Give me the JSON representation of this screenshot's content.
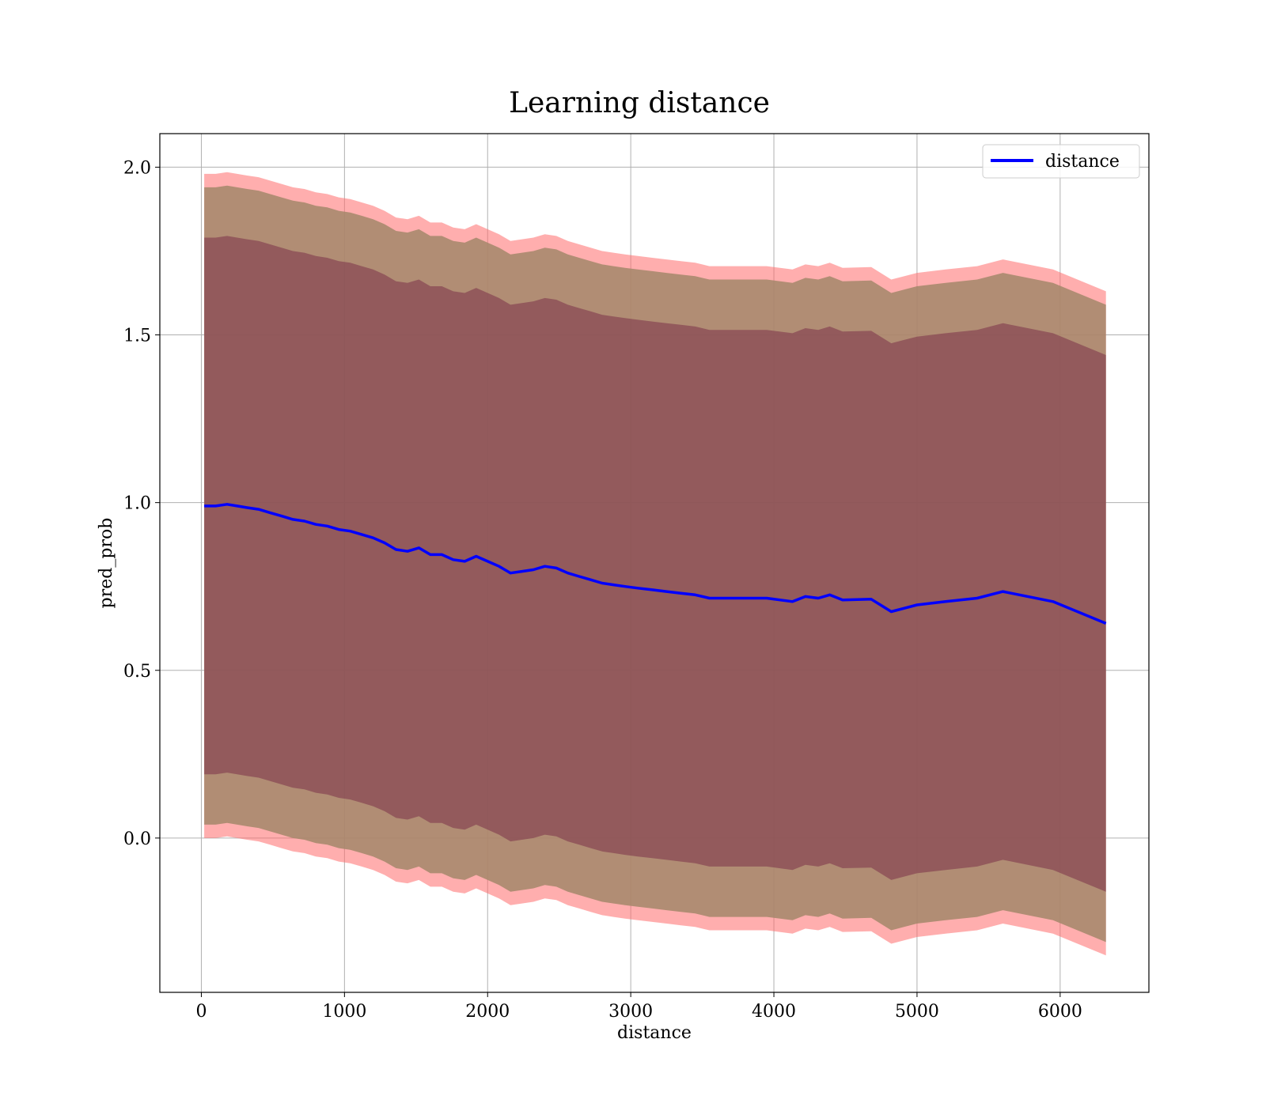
{
  "chart_data": {
    "type": "line",
    "title": "Learning distance",
    "xlabel": "distance",
    "ylabel": "pred_prob",
    "xlim": [
      -290,
      6620
    ],
    "ylim": [
      -0.46,
      2.1
    ],
    "xticks": [
      0,
      1000,
      2000,
      3000,
      4000,
      5000,
      6000
    ],
    "xtick_labels": [
      "0",
      "1000",
      "2000",
      "3000",
      "4000",
      "5000",
      "6000"
    ],
    "yticks": [
      0.0,
      0.5,
      1.0,
      1.5,
      2.0
    ],
    "ytick_labels": [
      "0.0",
      "0.5",
      "1.0",
      "1.5",
      "2.0"
    ],
    "grid": true,
    "legend": {
      "position": "top-right",
      "entries": [
        "distance"
      ]
    },
    "colors": {
      "line": "#0000ff",
      "band_outer": "#ff6b6b",
      "band_middle": "#a3876a",
      "band_inner": "#7a3248",
      "grid": "#b0b0b0"
    },
    "series": [
      {
        "name": "distance",
        "x": [
          20,
          100,
          180,
          250,
          320,
          400,
          480,
          560,
          640,
          720,
          800,
          880,
          960,
          1040,
          1120,
          1200,
          1280,
          1360,
          1440,
          1520,
          1600,
          1680,
          1760,
          1840,
          1920,
          2000,
          2080,
          2160,
          2240,
          2320,
          2400,
          2480,
          2560,
          2640,
          2720,
          2800,
          2880,
          2960,
          3050,
          3150,
          3250,
          3350,
          3450,
          3550,
          3650,
          3750,
          3850,
          3950,
          4130,
          4220,
          4310,
          4390,
          4480,
          4680,
          4820,
          5000,
          5200,
          5420,
          5600,
          5950,
          6320
        ],
        "values": [
          0.99,
          0.99,
          0.995,
          0.99,
          0.985,
          0.98,
          0.97,
          0.96,
          0.95,
          0.945,
          0.935,
          0.93,
          0.92,
          0.915,
          0.905,
          0.895,
          0.88,
          0.86,
          0.855,
          0.865,
          0.845,
          0.845,
          0.83,
          0.825,
          0.84,
          0.825,
          0.81,
          0.79,
          0.795,
          0.8,
          0.81,
          0.805,
          0.79,
          0.78,
          0.77,
          0.76,
          0.755,
          0.75,
          0.745,
          0.74,
          0.735,
          0.73,
          0.725,
          0.715,
          0.715,
          0.715,
          0.715,
          0.715,
          0.705,
          0.72,
          0.715,
          0.725,
          0.71,
          0.712,
          0.675,
          0.695,
          0.705,
          0.715,
          0.735,
          0.705,
          0.64
        ],
        "band_half_widths": {
          "inner": 0.8,
          "middle": 0.95,
          "outer": 0.99
        }
      }
    ]
  }
}
